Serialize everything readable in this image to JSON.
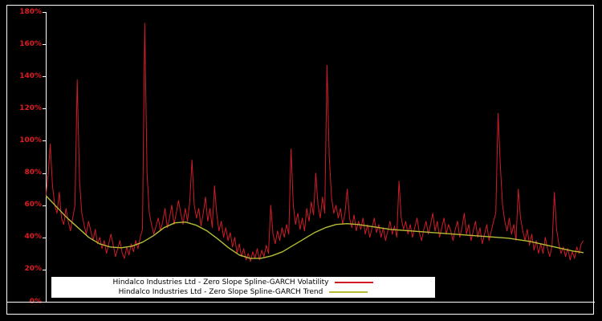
{
  "chart_data": {
    "type": "line",
    "title": "",
    "xlabel": "",
    "ylabel": "",
    "ylim": [
      0,
      180
    ],
    "ytick_step": 20,
    "yticks": [
      "0%",
      "20%",
      "40%",
      "60%",
      "80%",
      "100%",
      "120%",
      "140%",
      "160%",
      "180%"
    ],
    "grid": false,
    "legend_position": "bottom-left-inside",
    "background_color": "#000000",
    "axis_label_color": "#dd1c23",
    "frame_color": "#ffffff",
    "series": [
      {
        "name": "Hindalco Industries Ltd - Zero Slope Spline-GARCH Volatility",
        "color": "#cf1d26",
        "values": [
          65,
          78,
          98,
          72,
          60,
          55,
          68,
          52,
          48,
          58,
          50,
          44,
          52,
          60,
          138,
          75,
          55,
          48,
          42,
          50,
          44,
          38,
          45,
          36,
          40,
          33,
          38,
          30,
          36,
          42,
          35,
          28,
          33,
          38,
          30,
          27,
          34,
          29,
          36,
          31,
          38,
          33,
          40,
          45,
          173,
          80,
          55,
          48,
          42,
          47,
          52,
          44,
          50,
          58,
          46,
          52,
          60,
          48,
          55,
          63,
          55,
          48,
          58,
          50,
          62,
          88,
          60,
          52,
          58,
          47,
          55,
          65,
          50,
          58,
          46,
          72,
          54,
          44,
          50,
          40,
          46,
          38,
          43,
          34,
          40,
          30,
          36,
          28,
          33,
          26,
          30,
          25,
          31,
          27,
          33,
          26,
          32,
          28,
          35,
          30,
          60,
          42,
          36,
          44,
          38,
          46,
          40,
          48,
          42,
          95,
          60,
          48,
          55,
          45,
          52,
          44,
          58,
          50,
          62,
          54,
          80,
          60,
          52,
          65,
          55,
          147,
          90,
          65,
          55,
          60,
          52,
          58,
          48,
          55,
          70,
          52,
          46,
          54,
          44,
          50,
          45,
          52,
          42,
          48,
          40,
          46,
          52,
          43,
          48,
          40,
          46,
          38,
          44,
          50,
          42,
          47,
          40,
          75,
          52,
          45,
          50,
          42,
          48,
          40,
          46,
          52,
          43,
          38,
          45,
          50,
          42,
          48,
          55,
          44,
          50,
          40,
          46,
          52,
          42,
          48,
          44,
          38,
          45,
          50,
          40,
          46,
          55,
          42,
          48,
          38,
          44,
          50,
          40,
          46,
          36,
          42,
          48,
          38,
          44,
          50,
          55,
          117,
          85,
          60,
          50,
          44,
          52,
          42,
          48,
          38,
          70,
          52,
          44,
          38,
          45,
          35,
          42,
          32,
          38,
          30,
          36,
          30,
          40,
          33,
          28,
          35,
          68,
          45,
          36,
          30,
          34,
          28,
          33,
          26,
          31,
          27,
          34,
          30,
          36,
          38
        ]
      },
      {
        "name": "Hindalco Industries Ltd - Zero Slope Spline-GARCH Trend",
        "color": "#b6bc35",
        "values": [
          66,
          59,
          52,
          46,
          40,
          36,
          34,
          33.5,
          34.5,
          37,
          41,
          46,
          49,
          49.5,
          47.5,
          44,
          39,
          33.5,
          29,
          27,
          27,
          28.5,
          31,
          35,
          39,
          43,
          46,
          48,
          48.5,
          48,
          47,
          46,
          45,
          44.5,
          44,
          43.5,
          43,
          42.5,
          42,
          41.5,
          41,
          40.5,
          40,
          39.5,
          38.5,
          37.5,
          36,
          34.5,
          33,
          31.5,
          30.5
        ]
      }
    ]
  }
}
